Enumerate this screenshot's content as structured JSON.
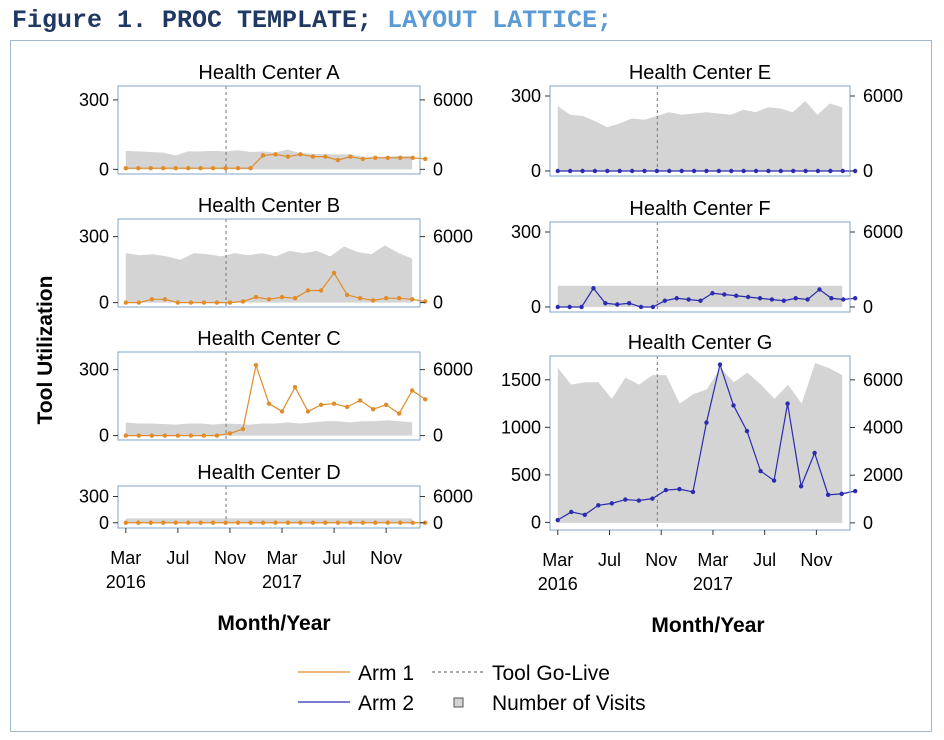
{
  "header": {
    "part1": "Figure 1. PROC TEMPLATE;",
    "part2": "LAYOUT LATTICE;"
  },
  "y_axis_label": "Tool Utilization",
  "x_axis_label": "Month/Year",
  "x_ticks": [
    {
      "month": 0,
      "l1": "Mar",
      "l2": "2016"
    },
    {
      "month": 4,
      "l1": "Jul",
      "l2": ""
    },
    {
      "month": 8,
      "l1": "Nov",
      "l2": ""
    },
    {
      "month": 12,
      "l1": "Mar",
      "l2": "2017"
    },
    {
      "month": 16,
      "l1": "Jul",
      "l2": ""
    },
    {
      "month": 20,
      "l1": "Nov",
      "l2": ""
    }
  ],
  "golive_month": 7.7,
  "legend": {
    "arm1": "Arm 1",
    "arm2": "Arm 2",
    "golive": "Tool Go-Live",
    "visits": "Number of Visits"
  },
  "colors": {
    "arm1": "#e08c2a",
    "arm2": "#2b2bb0",
    "visits": "#d4d4d4",
    "frame": "#7ea6c8",
    "golive": "#777777"
  },
  "chart_data": [
    {
      "type": "line",
      "title": "Health Center A",
      "series_key": "arm1",
      "y_left_ticks": [
        0,
        300
      ],
      "y_left_range": [
        -20,
        360
      ],
      "y_right_ticks": [
        0,
        6000
      ],
      "y_right_range": [
        -400,
        7200
      ],
      "values": [
        5,
        5,
        5,
        5,
        5,
        5,
        5,
        5,
        5,
        5,
        5,
        60,
        65,
        55,
        65,
        55,
        55,
        40,
        55,
        45,
        50,
        50,
        50,
        50,
        45
      ],
      "visits": [
        1600,
        1550,
        1500,
        1450,
        1200,
        1550,
        1550,
        1600,
        1550,
        1650,
        1500,
        1550,
        1450,
        1700,
        1400,
        1350,
        1300,
        1300,
        1300,
        1100,
        1100,
        1100,
        1150,
        1150
      ]
    },
    {
      "type": "line",
      "title": "Health Center B",
      "series_key": "arm1",
      "y_left_ticks": [
        0,
        300
      ],
      "y_left_range": [
        -20,
        380
      ],
      "y_right_ticks": [
        0,
        6000
      ],
      "y_right_range": [
        -400,
        7600
      ],
      "values": [
        0,
        0,
        15,
        15,
        0,
        0,
        0,
        0,
        0,
        5,
        25,
        15,
        25,
        20,
        55,
        55,
        135,
        35,
        20,
        10,
        20,
        20,
        15,
        5
      ],
      "visits": [
        4500,
        4300,
        4400,
        4200,
        3900,
        4500,
        4400,
        4200,
        4500,
        4300,
        4500,
        4200,
        4700,
        4500,
        4700,
        4200,
        5100,
        4600,
        4400,
        5200,
        4500,
        4000
      ]
    },
    {
      "type": "line",
      "title": "Health Center C",
      "series_key": "arm1",
      "y_left_ticks": [
        0,
        300
      ],
      "y_left_range": [
        -20,
        380
      ],
      "y_right_ticks": [
        0,
        6000
      ],
      "y_right_range": [
        -400,
        7600
      ],
      "values": [
        0,
        0,
        0,
        0,
        0,
        0,
        0,
        0,
        10,
        30,
        320,
        145,
        110,
        220,
        110,
        140,
        145,
        130,
        160,
        120,
        140,
        100,
        205,
        165
      ],
      "visits": [
        1200,
        1100,
        1100,
        1050,
        1000,
        1100,
        1100,
        1000,
        1100,
        1050,
        1000,
        1100,
        1100,
        1200,
        1100,
        1200,
        1300,
        1300,
        1200,
        1300,
        1300,
        1400,
        1300,
        1200
      ]
    },
    {
      "type": "line",
      "title": "Health Center D",
      "series_key": "arm1",
      "y_left_ticks": [
        0,
        300
      ],
      "y_left_range": [
        -60,
        420
      ],
      "y_right_ticks": [
        0,
        6000
      ],
      "y_right_range": [
        -1200,
        8400
      ],
      "values": [
        0,
        0,
        0,
        0,
        0,
        0,
        0,
        0,
        0,
        0,
        0,
        0,
        0,
        0,
        0,
        0,
        0,
        0,
        0,
        0,
        0,
        0,
        0,
        0,
        0
      ],
      "visits": [
        1000,
        1000,
        1000,
        1000,
        1000,
        1000,
        1000,
        1000,
        1000,
        1000,
        1000,
        1000,
        1000,
        1000,
        1000,
        1000,
        1000,
        1000,
        1000,
        1000,
        1000,
        1000,
        1000,
        1000
      ]
    },
    {
      "type": "line",
      "title": "Health Center E",
      "series_key": "arm2",
      "y_left_ticks": [
        0,
        300
      ],
      "y_left_range": [
        -20,
        340
      ],
      "y_right_ticks": [
        0,
        6000
      ],
      "y_right_range": [
        -400,
        6800
      ],
      "values": [
        0,
        0,
        0,
        0,
        0,
        0,
        0,
        0,
        0,
        0,
        0,
        0,
        0,
        0,
        0,
        0,
        0,
        0,
        0,
        0,
        0,
        0,
        0,
        0,
        0
      ],
      "visits": [
        5200,
        4500,
        4400,
        4000,
        3500,
        3800,
        4200,
        4100,
        4400,
        4700,
        4500,
        4600,
        4700,
        4600,
        4500,
        4900,
        4700,
        5100,
        5000,
        4700,
        5600,
        4500,
        5400,
        5100
      ]
    },
    {
      "type": "line",
      "title": "Health Center F",
      "series_key": "arm2",
      "y_left_ticks": [
        0,
        300
      ],
      "y_left_range": [
        -20,
        340
      ],
      "y_right_ticks": [
        0,
        6000
      ],
      "y_right_range": [
        -400,
        6800
      ],
      "values": [
        0,
        0,
        0,
        75,
        15,
        10,
        15,
        0,
        0,
        25,
        35,
        30,
        25,
        55,
        50,
        45,
        40,
        35,
        30,
        25,
        35,
        30,
        70,
        35,
        30,
        35
      ],
      "visits": [
        1700,
        1700,
        1700,
        1700,
        1700,
        1700,
        1700,
        1700,
        1700,
        1700,
        1700,
        1700,
        1700,
        1700,
        1700,
        1700,
        1700,
        1700,
        1700,
        1700,
        1700,
        1700,
        1700,
        1700
      ]
    },
    {
      "type": "line",
      "title": "Health Center G",
      "series_key": "arm2",
      "y_left_ticks": [
        0,
        500,
        1000,
        1500
      ],
      "y_left_range": [
        -80,
        1750
      ],
      "y_right_ticks": [
        0,
        2000,
        4000,
        6000
      ],
      "y_right_range": [
        -300,
        7000
      ],
      "values": [
        25,
        110,
        80,
        180,
        200,
        240,
        230,
        250,
        340,
        350,
        320,
        1050,
        1660,
        1230,
        960,
        540,
        440,
        1250,
        380,
        730,
        290,
        300,
        330
      ],
      "visits": [
        6500,
        5800,
        5900,
        5900,
        5200,
        6100,
        5800,
        6200,
        6200,
        5000,
        5400,
        5600,
        6500,
        5900,
        6300,
        5800,
        5200,
        5800,
        5000,
        6700,
        6500,
        6200
      ]
    }
  ]
}
